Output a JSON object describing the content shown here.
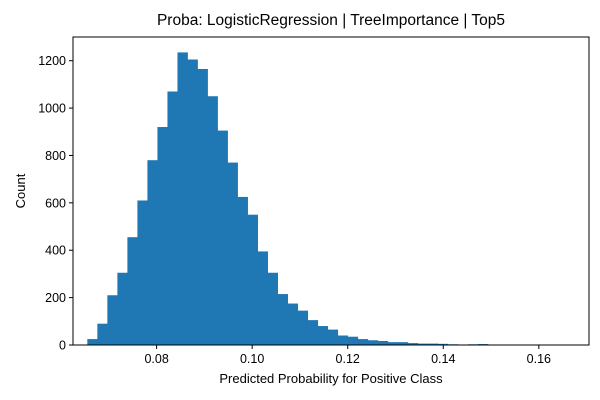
{
  "chart_data": {
    "type": "bar",
    "title": "Proba: LogisticRegression | TreeImportance | Top5",
    "xlabel": "Predicted Probability for Positive Class",
    "ylabel": "Count",
    "xlim": [
      0.0625,
      0.1705
    ],
    "ylim": [
      0,
      1300
    ],
    "xticks": [
      0.08,
      0.1,
      0.12,
      0.14,
      0.16
    ],
    "xtick_labels": [
      "0.08",
      "0.10",
      "0.12",
      "0.14",
      "0.16"
    ],
    "yticks": [
      0,
      200,
      400,
      600,
      800,
      1000,
      1200
    ],
    "ytick_labels": [
      "0",
      "200",
      "400",
      "600",
      "800",
      "1000",
      "1200"
    ],
    "bin_start": 0.0655,
    "bin_width": 0.002096,
    "counts": [
      25,
      90,
      210,
      305,
      455,
      610,
      780,
      920,
      1070,
      1235,
      1205,
      1165,
      1050,
      905,
      770,
      625,
      550,
      395,
      305,
      215,
      175,
      145,
      105,
      80,
      65,
      40,
      35,
      25,
      20,
      17,
      12,
      12,
      8,
      6,
      6,
      5,
      3,
      2,
      3,
      4,
      2,
      2,
      1,
      1,
      1,
      1,
      1,
      1,
      1,
      1
    ],
    "bar_color": "#1f77b4",
    "grid": false,
    "legend": "none"
  }
}
